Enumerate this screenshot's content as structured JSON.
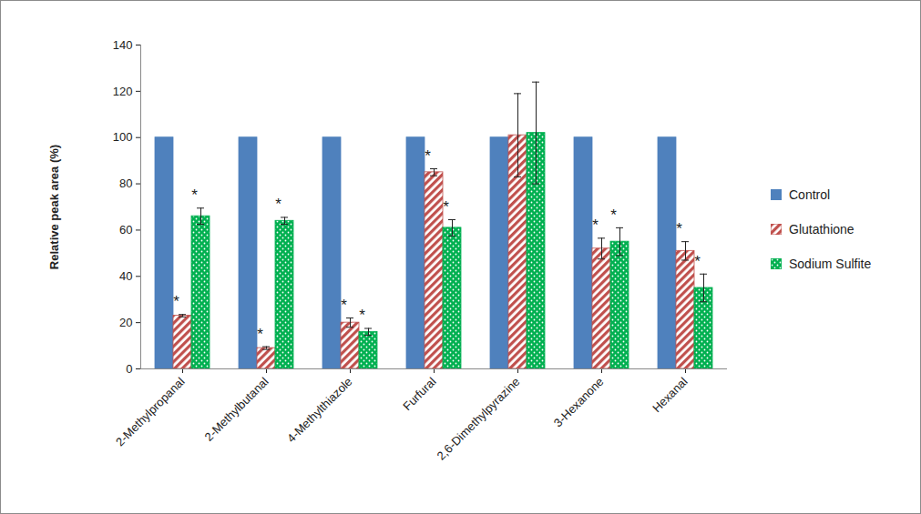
{
  "chart_data": {
    "type": "bar",
    "y_label": "Relative peak area (%)",
    "categories": [
      "2-Methylpropanal",
      "2-Methylbutanal",
      "4-Methylthiazole",
      "Furfural",
      "2,6-Dimethylpyrazine",
      "3-Hexanone",
      "Hexanal"
    ],
    "series": [
      {
        "name": "Control",
        "color": "#4f81bd",
        "values": [
          100,
          100,
          100,
          100,
          100,
          100,
          100
        ]
      },
      {
        "name": "Glutathione",
        "color": "#c0504d",
        "values": [
          23,
          9,
          20,
          85,
          101,
          52,
          51
        ],
        "errors": [
          0.5,
          0.6,
          2,
          1.5,
          18,
          4.5,
          4
        ],
        "annotations": [
          "*",
          "*",
          "*",
          "*",
          null,
          "*",
          "*"
        ]
      },
      {
        "name": "Sodium Sulfite",
        "color": "#00b050",
        "values": [
          66,
          64,
          16,
          61,
          102,
          55,
          35
        ],
        "errors": [
          3.5,
          1.5,
          1.5,
          3.5,
          22,
          6,
          6
        ],
        "annotations": [
          "*",
          "*",
          "*",
          "*",
          null,
          "*",
          "*"
        ]
      }
    ],
    "ylim": [
      0,
      140
    ],
    "yticks": [
      0,
      20,
      40,
      60,
      80,
      100,
      120,
      140
    ],
    "grid": false,
    "legend": "right"
  }
}
